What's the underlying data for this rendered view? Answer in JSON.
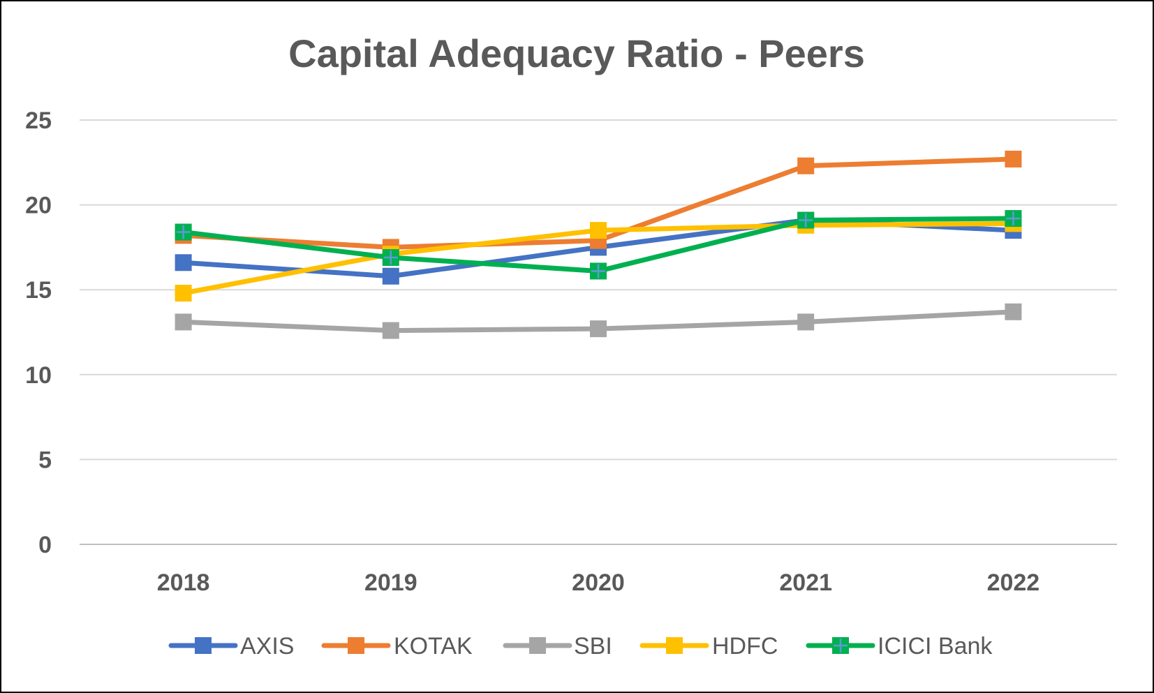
{
  "chart_data": {
    "type": "line",
    "title": "Capital Adequacy Ratio - Peers",
    "xlabel": "",
    "ylabel": "",
    "categories": [
      "2018",
      "2019",
      "2020",
      "2021",
      "2022"
    ],
    "ylim": [
      0,
      25
    ],
    "yticks": [
      "0",
      "5",
      "10",
      "15",
      "20",
      "25"
    ],
    "grid": true,
    "legend_position": "bottom",
    "series": [
      {
        "name": "AXIS",
        "color": "#4472C4",
        "marker": "square",
        "values": [
          16.6,
          15.8,
          17.5,
          19.1,
          18.5
        ]
      },
      {
        "name": "KOTAK",
        "color": "#ED7D31",
        "marker": "square",
        "values": [
          18.2,
          17.5,
          17.9,
          22.3,
          22.7
        ]
      },
      {
        "name": "SBI",
        "color": "#A5A5A5",
        "marker": "square",
        "values": [
          13.1,
          12.6,
          12.7,
          13.1,
          13.7
        ]
      },
      {
        "name": "HDFC",
        "color": "#FFC000",
        "marker": "square",
        "values": [
          14.8,
          17.1,
          18.5,
          18.8,
          18.9
        ]
      },
      {
        "name": "ICICI Bank",
        "color": "#00B050",
        "marker": "square-plus",
        "values": [
          18.4,
          16.9,
          16.1,
          19.1,
          19.2
        ]
      }
    ]
  }
}
